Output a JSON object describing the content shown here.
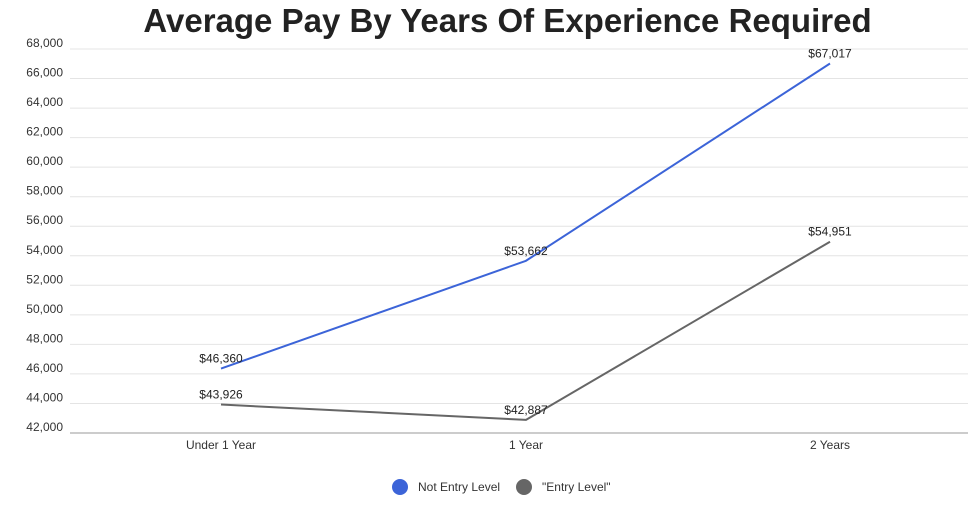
{
  "chart_data": {
    "type": "line",
    "title": "Average Pay By Years Of Experience Required",
    "categories": [
      "Under 1 Year",
      "1 Year",
      "2 Years"
    ],
    "series": [
      {
        "name": "Not Entry Level",
        "color": "#3c64d8",
        "values": [
          46360,
          53662,
          67017
        ],
        "labels": [
          "$46,360",
          "$53,662",
          "$67,017"
        ]
      },
      {
        "name": "\"Entry Level\"",
        "color": "#666666",
        "values": [
          43926,
          42887,
          54951
        ],
        "labels": [
          "$43,926",
          "$42,887",
          "$54,951"
        ]
      }
    ],
    "y_ticks": [
      "42,000",
      "44,000",
      "46,000",
      "48,000",
      "50,000",
      "52,000",
      "54,000",
      "56,000",
      "58,000",
      "60,000",
      "62,000",
      "64,000",
      "66,000",
      "68,000"
    ],
    "ylim": [
      42000,
      68000
    ],
    "grid": true,
    "legend_position": "bottom"
  }
}
